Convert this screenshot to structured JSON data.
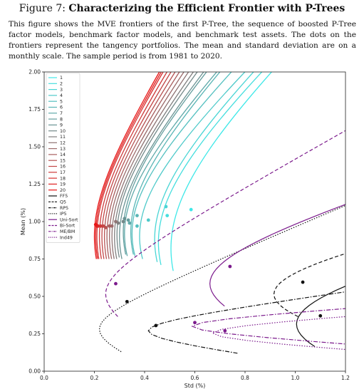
{
  "figure": {
    "label": "Figure 7:",
    "title": "Characterizing the Efficient Frontier with P-Trees",
    "caption": "This figure shows the MVE frontiers of the first P-Tree, the sequence of boosted P-Tree factor models, benchmark factor models, and benchmark test assets. The dots on the frontiers represent the tangency portfolios. The mean and standard deviation are on a monthly scale. The sample period is from 1981 to 2020."
  },
  "chart_data": {
    "type": "line",
    "xlabel": "Std (%)",
    "ylabel": "Mean (%)",
    "xlim": [
      0.0,
      1.2
    ],
    "ylim": [
      0.0,
      2.0
    ],
    "xticks": [
      "0.0",
      "0.2",
      "0.4",
      "0.6",
      "0.8",
      "1.0",
      "1.2"
    ],
    "yticks": [
      "0.00",
      "0.25",
      "0.50",
      "0.75",
      "1.00",
      "1.25",
      "1.50",
      "1.75",
      "2.00"
    ],
    "grid": false,
    "legend_position": "top-left",
    "series": [
      {
        "name": "1",
        "color": "#3ee8e8",
        "dash": "solid",
        "min_std": 0.505,
        "min_mean": 0.82,
        "k": 2.95,
        "tangency": [
          0.585,
          1.08
        ]
      },
      {
        "name": "2",
        "color": "#45dede",
        "dash": "solid",
        "min_std": 0.455,
        "min_mean": 0.86,
        "k": 2.85,
        "tangency": [
          0.49,
          1.04
        ]
      },
      {
        "name": "3",
        "color": "#4ad5d5",
        "dash": "solid",
        "min_std": 0.44,
        "min_mean": 0.88,
        "k": 2.9,
        "tangency": [
          0.485,
          1.1
        ]
      },
      {
        "name": "4",
        "color": "#4fcaca",
        "dash": "solid",
        "min_std": 0.38,
        "min_mean": 0.9,
        "k": 2.8,
        "tangency": [
          0.415,
          1.01
        ]
      },
      {
        "name": "5",
        "color": "#54c0c0",
        "dash": "solid",
        "min_std": 0.35,
        "min_mean": 0.92,
        "k": 2.9,
        "tangency": [
          0.37,
          0.97
        ]
      },
      {
        "name": "6",
        "color": "#5ab5b5",
        "dash": "solid",
        "min_std": 0.345,
        "min_mean": 0.93,
        "k": 3.1,
        "tangency": [
          0.37,
          1.04
        ]
      },
      {
        "name": "7",
        "color": "#5fa9a9",
        "dash": "solid",
        "min_std": 0.32,
        "min_mean": 0.92,
        "k": 3.1,
        "tangency": [
          0.34,
          0.99
        ]
      },
      {
        "name": "8",
        "color": "#649e9e",
        "dash": "solid",
        "min_std": 0.315,
        "min_mean": 0.93,
        "k": 3.3,
        "tangency": [
          0.335,
          1.01
        ]
      },
      {
        "name": "9",
        "color": "#6a9393",
        "dash": "solid",
        "min_std": 0.3,
        "min_mean": 0.9,
        "k": 3.4,
        "tangency": [
          0.32,
          1.02
        ]
      },
      {
        "name": "10",
        "color": "#748989",
        "dash": "solid",
        "min_std": 0.29,
        "min_mean": 0.91,
        "k": 3.5,
        "tangency": [
          0.315,
          1.0
        ]
      },
      {
        "name": "11",
        "color": "#807f7f",
        "dash": "solid",
        "min_std": 0.28,
        "min_mean": 0.9,
        "k": 3.6,
        "tangency": [
          0.295,
          0.99
        ]
      },
      {
        "name": "12",
        "color": "#8f7474",
        "dash": "solid",
        "min_std": 0.27,
        "min_mean": 0.9,
        "k": 3.7,
        "tangency": [
          0.285,
          1.0
        ]
      },
      {
        "name": "13",
        "color": "#9c6a6a",
        "dash": "solid",
        "min_std": 0.26,
        "min_mean": 0.9,
        "k": 3.8,
        "tangency": [
          0.27,
          0.97
        ]
      },
      {
        "name": "14",
        "color": "#a95f5f",
        "dash": "solid",
        "min_std": 0.25,
        "min_mean": 0.9,
        "k": 3.9,
        "tangency": [
          0.26,
          0.97
        ]
      },
      {
        "name": "15",
        "color": "#b65353",
        "dash": "solid",
        "min_std": 0.24,
        "min_mean": 0.9,
        "k": 4.0,
        "tangency": [
          0.245,
          0.96
        ]
      },
      {
        "name": "16",
        "color": "#c24646",
        "dash": "solid",
        "min_std": 0.23,
        "min_mean": 0.9,
        "k": 4.1,
        "tangency": [
          0.235,
          0.97
        ]
      },
      {
        "name": "17",
        "color": "#cd3a3a",
        "dash": "solid",
        "min_std": 0.22,
        "min_mean": 0.9,
        "k": 4.2,
        "tangency": [
          0.225,
          0.97
        ]
      },
      {
        "name": "18",
        "color": "#d62e2e",
        "dash": "solid",
        "min_std": 0.21,
        "min_mean": 0.9,
        "k": 4.3,
        "tangency": [
          0.215,
          0.97
        ]
      },
      {
        "name": "19",
        "color": "#df2222",
        "dash": "solid",
        "min_std": 0.205,
        "min_mean": 0.9,
        "k": 4.35,
        "tangency": [
          0.21,
          0.97
        ]
      },
      {
        "name": "20",
        "color": "#e81515",
        "dash": "solid",
        "min_std": 0.2,
        "min_mean": 0.9,
        "k": 4.4,
        "tangency": [
          0.205,
          0.98
        ]
      },
      {
        "name": "FF5",
        "color": "#111111",
        "dash": "solid",
        "min_std": 1.005,
        "min_mean": 0.315,
        "k": 0.85,
        "tangency": [
          1.1,
          0.37
        ]
      },
      {
        "name": "Q5",
        "color": "#111111",
        "dash": "dashed",
        "min_std": 0.915,
        "min_mean": 0.515,
        "k": 0.75,
        "tangency": [
          1.03,
          0.595
        ]
      },
      {
        "name": "RP5",
        "color": "#111111",
        "dash": "dashdot",
        "min_std": 0.415,
        "min_mean": 0.27,
        "k": 0.42,
        "tangency": [
          0.445,
          0.305
        ]
      },
      {
        "name": "IP5",
        "color": "#111111",
        "dash": "dotted",
        "min_std": 0.22,
        "min_mean": 0.28,
        "k": 1.17,
        "tangency": [
          0.33,
          0.465
        ]
      },
      {
        "name": "Uni-Sort",
        "color": "#7b1a8c",
        "dash": "solid",
        "min_std": 0.66,
        "min_mean": 0.585,
        "k": 1.05,
        "tangency": [
          0.74,
          0.7
        ]
      },
      {
        "name": "Bi-Sort",
        "color": "#7b1a8c",
        "dash": "dashed",
        "min_std": 0.245,
        "min_mean": 0.515,
        "k": 1.57,
        "tangency": [
          0.285,
          0.585
        ]
      },
      {
        "name": "ME/BM",
        "color": "#7b1a8c",
        "dash": "dashdot",
        "min_std": 0.59,
        "min_mean": 0.3,
        "k": 0.22,
        "tangency": [
          0.6,
          0.325
        ]
      },
      {
        "name": "Ind49",
        "color": "#7b1a8c",
        "dash": "dotted",
        "min_std": 0.67,
        "min_mean": 0.255,
        "k": 0.22,
        "tangency": [
          0.72,
          0.27
        ]
      }
    ]
  }
}
